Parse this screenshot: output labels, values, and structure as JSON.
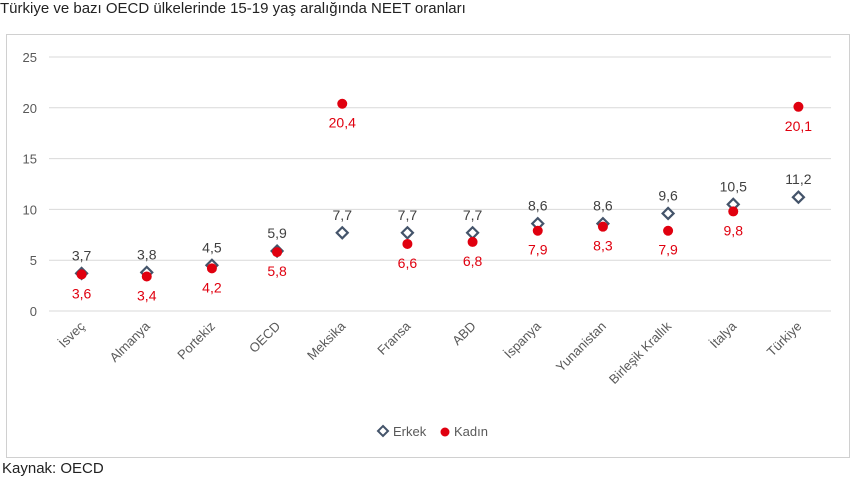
{
  "title": "Türkiye ve bazı OECD ülkelerinde 15-19 yaş aralığında NEET oranları",
  "source": "Kaynak: OECD",
  "colors": {
    "erkek": "#44546a",
    "kadin": "#e0000f",
    "grid": "#d9d9d9",
    "axis_text": "#595959"
  },
  "chart_data": {
    "type": "scatter",
    "categories": [
      "İsveç",
      "Almanya",
      "Portekiz",
      "OECD",
      "Meksika",
      "Fransa",
      "ABD",
      "İspanya",
      "Yunanistan",
      "Birleşik Krallık",
      "İtalya",
      "Türkiye"
    ],
    "series": [
      {
        "name": "Erkek",
        "marker": "diamond",
        "values": [
          3.7,
          3.8,
          4.5,
          5.9,
          7.7,
          7.7,
          7.7,
          8.6,
          8.6,
          9.6,
          10.5,
          11.2
        ],
        "labels": [
          "3,7",
          "3,8",
          "4,5",
          "5,9",
          "7,7",
          "7,7",
          "7,7",
          "8,6",
          "8,6",
          "9,6",
          "10,5",
          "11,2"
        ]
      },
      {
        "name": "Kadın",
        "marker": "circle",
        "values": [
          3.6,
          3.4,
          4.2,
          5.8,
          20.4,
          6.6,
          6.8,
          7.9,
          8.3,
          7.9,
          9.8,
          20.1
        ],
        "labels": [
          "3,6",
          "3,4",
          "4,2",
          "5,8",
          "20,4",
          "6,6",
          "6,8",
          "7,9",
          "8,3",
          "7,9",
          "9,8",
          "20,1"
        ]
      }
    ],
    "yticks": [
      "0",
      "5",
      "10",
      "15",
      "20",
      "25"
    ],
    "ylim": [
      0,
      25
    ],
    "grid": true,
    "legend_position": "bottom"
  }
}
